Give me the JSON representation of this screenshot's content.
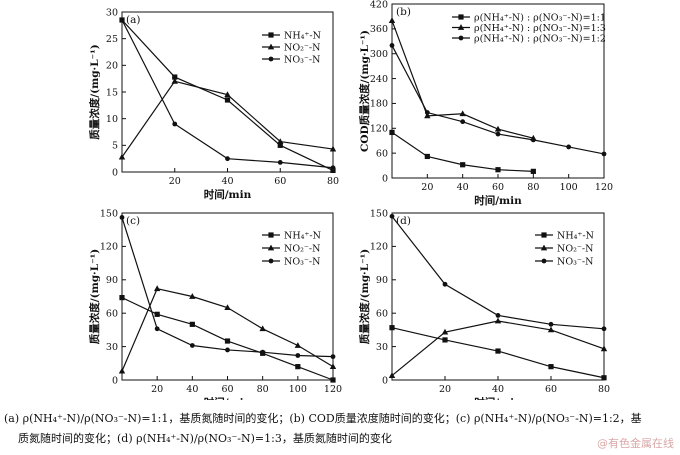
{
  "caption": {
    "line1": "(a) ρ(NH₄⁺-N)/ρ(NO₃⁻-N)=1:1，基质氮随时间的变化；(b) COD质量浓度随时间的变化；(c) ρ(NH₄⁺-N)/ρ(NO₃⁻-N)=1:2，基",
    "line2": "质氮随时间的变化；(d) ρ(NH₄⁺-N)/ρ(NO₃⁻-N)=1:3，基质氮随时间的变化"
  },
  "watermark": "@有色金属在线",
  "chart_data": [
    {
      "panel": "(a)",
      "type": "line",
      "xlabel": "时间/min",
      "ylabel": "质量浓度/(mg·L⁻¹)",
      "xlim": [
        0,
        80
      ],
      "ylim": [
        0,
        30
      ],
      "xticks": [
        20,
        40,
        60,
        80
      ],
      "yticks": [
        0,
        5,
        10,
        15,
        20,
        25,
        30
      ],
      "legend_position": "top-right",
      "series": [
        {
          "name": "NH₄⁺-N",
          "marker": "square",
          "x": [
            0,
            20,
            40,
            60,
            80
          ],
          "y": [
            28.5,
            17.8,
            13.5,
            5.0,
            0.3
          ]
        },
        {
          "name": "NO₂⁻-N",
          "marker": "triangle",
          "x": [
            0,
            20,
            40,
            60,
            80
          ],
          "y": [
            2.8,
            17.0,
            14.5,
            5.7,
            4.3
          ]
        },
        {
          "name": "NO₃⁻-N",
          "marker": "dot",
          "x": [
            0,
            20,
            40,
            60,
            80
          ],
          "y": [
            28.5,
            9.0,
            2.5,
            1.8,
            0.8
          ]
        }
      ]
    },
    {
      "panel": "(b)",
      "type": "line",
      "xlabel": "时间/min",
      "ylabel": "COD质量浓度/(mg·L⁻¹)",
      "xlim": [
        0,
        120
      ],
      "ylim": [
        0,
        420
      ],
      "xticks": [
        20,
        40,
        60,
        80,
        100,
        120
      ],
      "yticks": [
        0,
        60,
        120,
        180,
        240,
        300,
        360,
        420
      ],
      "legend_position": "top-right",
      "series": [
        {
          "name": "ρ(NH₄⁺-N) : ρ(NO₃⁻-N)=1:1",
          "marker": "square",
          "x": [
            0,
            20,
            40,
            60,
            80
          ],
          "y": [
            110,
            52,
            32,
            20,
            16
          ]
        },
        {
          "name": "ρ(NH₄⁺-N) : ρ(NO₃⁻-N)=1:3",
          "marker": "triangle",
          "x": [
            0,
            20,
            40,
            60,
            80
          ],
          "y": [
            380,
            150,
            155,
            118,
            96
          ]
        },
        {
          "name": "ρ(NH₄⁺-N) : ρ(NO₃⁻-N)=1:2",
          "marker": "dot",
          "x": [
            0,
            20,
            40,
            60,
            80,
            100,
            120
          ],
          "y": [
            320,
            158,
            136,
            106,
            92,
            75,
            58
          ]
        }
      ]
    },
    {
      "panel": "(c)",
      "type": "line",
      "xlabel": "时间/min",
      "ylabel": "质量浓度/(mg·L⁻¹)",
      "xlim": [
        0,
        120
      ],
      "ylim": [
        0,
        150
      ],
      "xticks": [
        20,
        40,
        60,
        80,
        100,
        120
      ],
      "yticks": [
        0,
        30,
        60,
        90,
        120,
        150
      ],
      "legend_position": "top-right",
      "series": [
        {
          "name": "NH₄⁺-N",
          "marker": "square",
          "x": [
            0,
            20,
            40,
            60,
            80,
            100,
            120
          ],
          "y": [
            74,
            59,
            50,
            35,
            24,
            12,
            0
          ]
        },
        {
          "name": "NO₂⁻-N",
          "marker": "triangle",
          "x": [
            0,
            20,
            40,
            60,
            80,
            100,
            120
          ],
          "y": [
            8,
            82,
            75,
            65,
            46,
            31,
            12
          ]
        },
        {
          "name": "NO₃⁻-N",
          "marker": "dot",
          "x": [
            0,
            20,
            40,
            60,
            80,
            100,
            120
          ],
          "y": [
            146,
            46,
            31,
            27,
            25,
            22,
            21
          ]
        }
      ]
    },
    {
      "panel": "(d)",
      "type": "line",
      "xlabel": "时间/min",
      "ylabel": "质量浓度/(mg·L⁻¹)",
      "xlim": [
        0,
        80
      ],
      "ylim": [
        0,
        150
      ],
      "xticks": [
        20,
        40,
        60,
        80
      ],
      "yticks": [
        0,
        30,
        60,
        90,
        120,
        150
      ],
      "legend_position": "top-right",
      "series": [
        {
          "name": "NH₄⁺-N",
          "marker": "square",
          "x": [
            0,
            20,
            40,
            60,
            80
          ],
          "y": [
            47,
            36,
            26,
            12,
            2
          ]
        },
        {
          "name": "NO₂⁻-N",
          "marker": "triangle",
          "x": [
            0,
            20,
            40,
            60,
            80
          ],
          "y": [
            4,
            43,
            53,
            45,
            28
          ]
        },
        {
          "name": "NO₃⁻-N",
          "marker": "dot",
          "x": [
            0,
            20,
            40,
            60,
            80
          ],
          "y": [
            147,
            86,
            58,
            50,
            46
          ]
        }
      ]
    }
  ]
}
